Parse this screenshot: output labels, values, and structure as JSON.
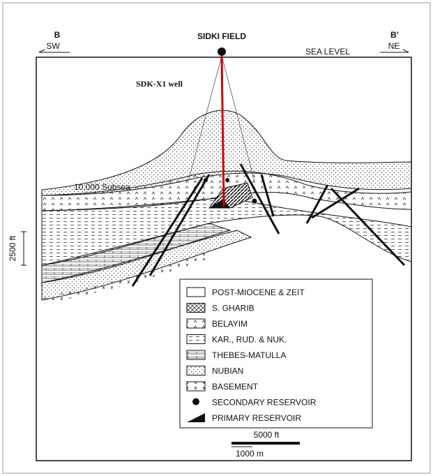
{
  "header": {
    "left_point": "B",
    "left_dir": "SW",
    "title": "SIDKI FIELD",
    "right_point": "B’",
    "right_dir": "NE",
    "datum": "SEA LEVEL"
  },
  "labels": {
    "well": "SDK-X1 well",
    "depth": "10,000 Subsea",
    "vertical_scale": "2500 ft"
  },
  "legend": {
    "items": [
      "POST-MIOCENE & ZEIT",
      "S. GHARIB",
      "BELAYIM",
      "KAR., RUD. & NUK.",
      "THEBES-MATULLA",
      "NUBIAN",
      "BASEMENT",
      "SECONDARY RESERVOIR",
      "PRIMARY RESERVOIR"
    ]
  },
  "scale_bar": {
    "top": "5000 ft",
    "bottom": "1000 m"
  }
}
